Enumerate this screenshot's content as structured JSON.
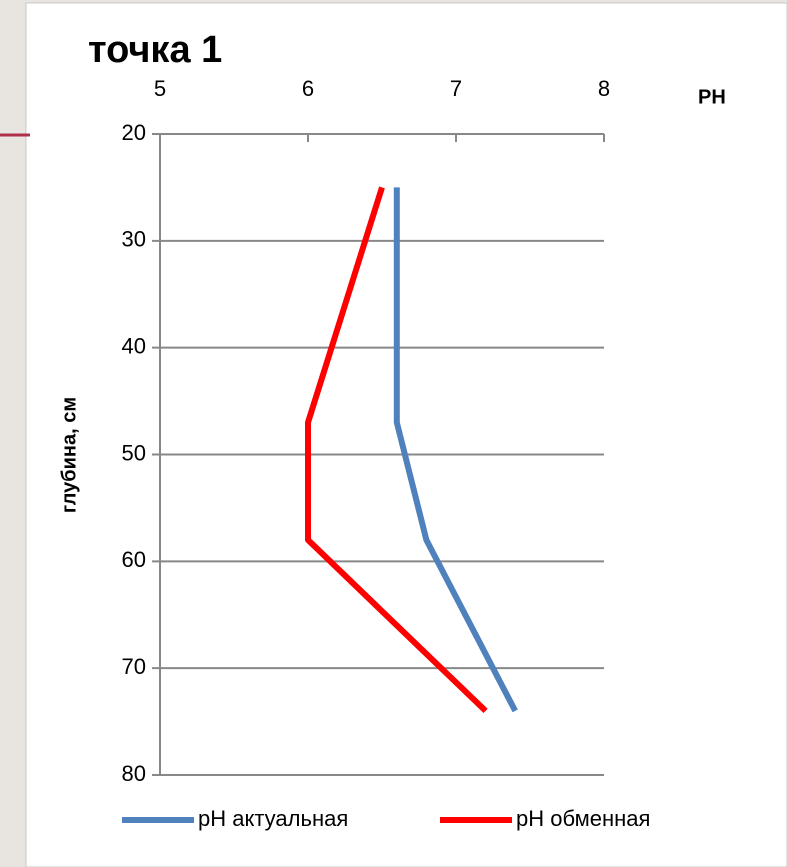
{
  "chart_data": {
    "type": "line",
    "title": "точка 1",
    "x_label": "PH",
    "y_label": "глубина, см",
    "y": [
      25,
      47,
      58,
      74
    ],
    "series": [
      {
        "name": "pH актуальная",
        "color": "#4f81bd",
        "values": [
          6.6,
          6.6,
          6.8,
          7.4
        ]
      },
      {
        "name": "pH обменная",
        "color": "#ff0000",
        "values": [
          6.5,
          6.0,
          6.0,
          7.2
        ]
      }
    ],
    "xlim": [
      5,
      8
    ],
    "xticks": [
      5,
      6,
      7,
      8
    ],
    "ylim": [
      20,
      80
    ],
    "yticks": [
      20,
      30,
      40,
      50,
      60,
      70,
      80
    ],
    "y_inverted": true,
    "x_axis_position": "top",
    "grid": true,
    "legend": "bottom"
  }
}
